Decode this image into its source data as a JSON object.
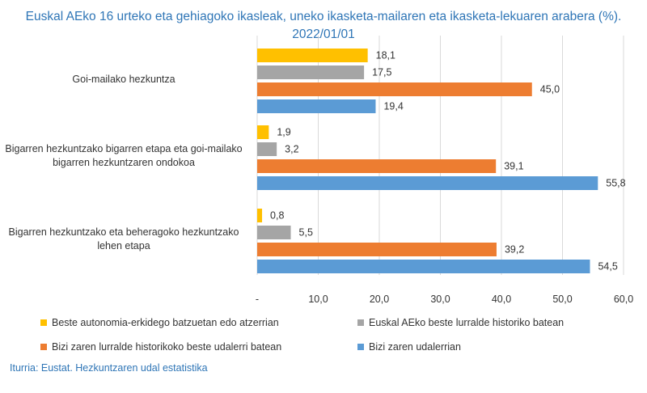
{
  "chart_data": {
    "type": "bar",
    "orientation": "horizontal",
    "title_line1": "Euskal AEko 16 urteko eta gehiagoko ikasleak, uneko ikasketa-mailaren eta ikasketa-lekuaren arabera (%).",
    "title_line2": "2022/01/01",
    "categories": [
      "Goi-mailako hezkuntza",
      "Bigarren hezkuntzako bigarren etapa eta goi-mailako bigarren hezkuntzaren ondokoa",
      "Bigarren hezkuntzako eta beheragoko hezkuntzako lehen etapa"
    ],
    "categories_lines": [
      [
        "Goi-mailako hezkuntza"
      ],
      [
        "Bigarren hezkuntzako bigarren etapa eta goi-mailako",
        "bigarren hezkuntzaren ondokoa"
      ],
      [
        "Bigarren hezkuntzako eta beheragoko hezkuntzako",
        "lehen etapa"
      ]
    ],
    "series": [
      {
        "name": "Beste autonomia-erkidego batzuetan edo atzerrian",
        "color": "#ffc000",
        "values": [
          18.1,
          1.9,
          0.8
        ],
        "labels": [
          "18,1",
          "1,9",
          "0,8"
        ]
      },
      {
        "name": "Euskal AEko beste lurralde historiko batean",
        "color": "#a5a5a5",
        "values": [
          17.5,
          3.2,
          5.5
        ],
        "labels": [
          "17,5",
          "3,2",
          "5,5"
        ]
      },
      {
        "name": "Bizi zaren lurralde historikoko beste udalerri batean",
        "color": "#ed7d31",
        "values": [
          45.0,
          39.1,
          39.2
        ],
        "labels": [
          "45,0",
          "39,1",
          "39,2"
        ]
      },
      {
        "name": "Bizi zaren udalerrian",
        "color": "#5b9bd5",
        "values": [
          19.4,
          55.8,
          54.5
        ],
        "labels": [
          "19,4",
          "55,8",
          "54,5"
        ]
      }
    ],
    "xlim": [
      0,
      60
    ],
    "xticks": [
      0,
      10,
      20,
      30,
      40,
      50,
      60
    ],
    "xtick_labels": [
      "-",
      "10,0",
      "20,0",
      "30,0",
      "40,0",
      "50,0",
      "60,0"
    ],
    "grid": "vertical",
    "legend_position": "bottom"
  },
  "source": "Iturria: Eustat. Hezkuntzaren udal estatistika"
}
